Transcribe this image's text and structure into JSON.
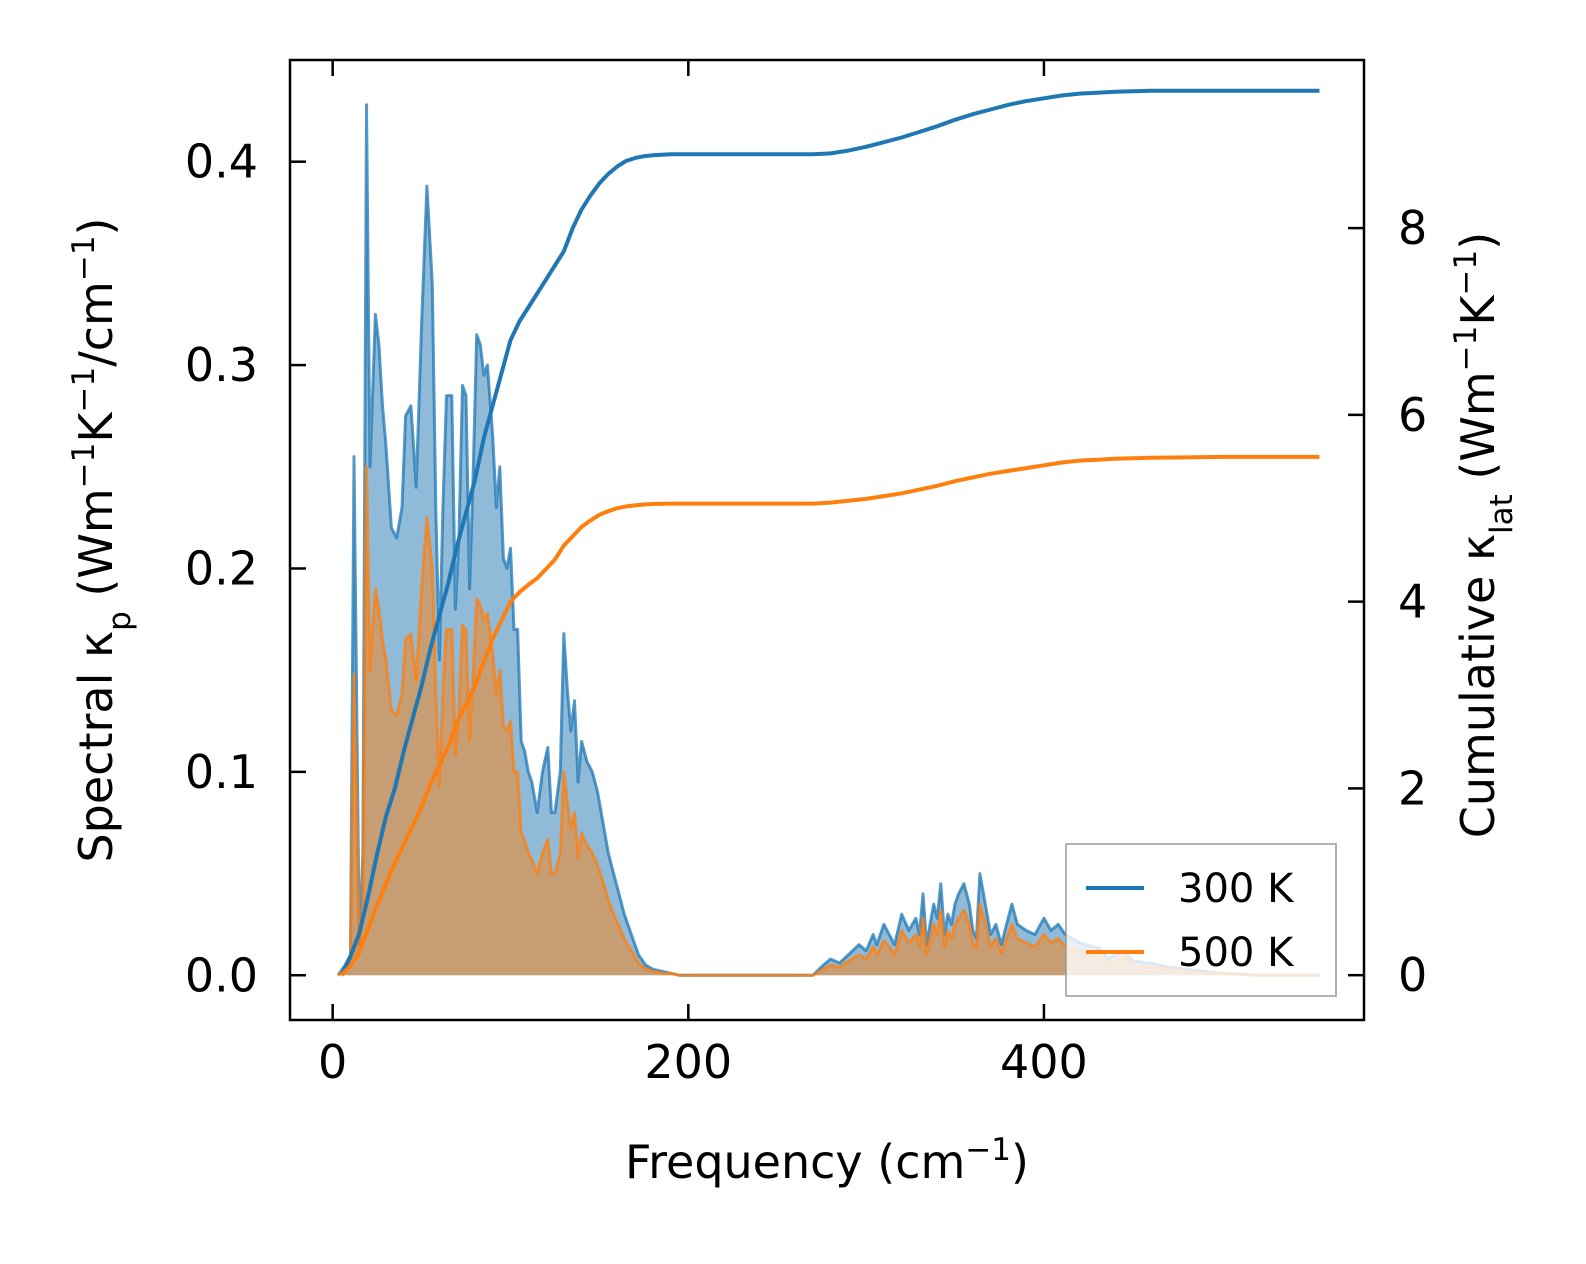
{
  "chart_data": {
    "type": "line",
    "title": "",
    "xlabel": {
      "base": "Frequency (cm",
      "sup": "−1",
      "tail": ")"
    },
    "ylabel_left": {
      "parts": [
        {
          "t": "Spectral κ"
        },
        {
          "t": "p",
          "sub": true
        },
        {
          "t": " (Wm"
        },
        {
          "t": "−1",
          "sup": true
        },
        {
          "t": "K"
        },
        {
          "t": "−1",
          "sup": true
        },
        {
          "t": "/cm"
        },
        {
          "t": "−1",
          "sup": true
        },
        {
          "t": ")"
        }
      ]
    },
    "ylabel_right": {
      "parts": [
        {
          "t": "Cumulative κ"
        },
        {
          "t": "lat",
          "sub": true
        },
        {
          "t": " (Wm"
        },
        {
          "t": "−1",
          "sup": true
        },
        {
          "t": "K"
        },
        {
          "t": "−1",
          "sup": true
        },
        {
          "t": ")"
        }
      ]
    },
    "xlim": [
      -24,
      580
    ],
    "ylim_left": [
      -0.022,
      0.45
    ],
    "ylim_right": [
      -0.48,
      9.8
    ],
    "xticks": [
      0,
      200,
      400
    ],
    "yticks_left": [
      0.0,
      0.1,
      0.2,
      0.3,
      0.4
    ],
    "yticks_left_labels": [
      "0.0",
      "0.1",
      "0.2",
      "0.3",
      "0.4"
    ],
    "yticks_right": [
      0,
      2,
      4,
      6,
      8
    ],
    "yticks_right_labels": [
      "0",
      "2",
      "4",
      "6",
      "8"
    ],
    "legend": {
      "position": "lower-right",
      "entries": [
        "300 K",
        "500 K"
      ]
    },
    "colors": {
      "300K": "#1f77b4",
      "500K": "#ff7f0e"
    },
    "series": [
      {
        "name": "300 K",
        "kind": "spectral",
        "axis": "left",
        "x": [
          3,
          7,
          10,
          12,
          15,
          17,
          19,
          21,
          24,
          26,
          28,
          30,
          33,
          36,
          39,
          41,
          44,
          47,
          50,
          53,
          56,
          58,
          60,
          62,
          64,
          67,
          69,
          71,
          73,
          75,
          77,
          79,
          81,
          83,
          85,
          87,
          90,
          92,
          94,
          96,
          98,
          100,
          102,
          104,
          106,
          108,
          110,
          112,
          115,
          118,
          121,
          123,
          125,
          128,
          130,
          132,
          134,
          136,
          138,
          140,
          143,
          146,
          149,
          152,
          155,
          158,
          161,
          164,
          168,
          172,
          176,
          180,
          185,
          190,
          195,
          200,
          210,
          230,
          250,
          270,
          276,
          280,
          285,
          290,
          296,
          300,
          304,
          306,
          310,
          313,
          316,
          320,
          324,
          328,
          330,
          332,
          334,
          336,
          338,
          340,
          342,
          344,
          346,
          348,
          350,
          352,
          355,
          358,
          360,
          362,
          364,
          367,
          370,
          373,
          376,
          379,
          382,
          385,
          390,
          395,
          400,
          404,
          408,
          412,
          416,
          420,
          424,
          428,
          432,
          436,
          440,
          445,
          450,
          460,
          470,
          480,
          490,
          500,
          520,
          540,
          555
        ],
        "y": [
          0.0,
          0.005,
          0.01,
          0.255,
          0.015,
          0.06,
          0.428,
          0.25,
          0.325,
          0.31,
          0.28,
          0.26,
          0.22,
          0.215,
          0.23,
          0.275,
          0.28,
          0.24,
          0.32,
          0.388,
          0.34,
          0.23,
          0.155,
          0.23,
          0.285,
          0.285,
          0.18,
          0.215,
          0.29,
          0.285,
          0.19,
          0.245,
          0.315,
          0.31,
          0.295,
          0.3,
          0.265,
          0.23,
          0.25,
          0.205,
          0.2,
          0.21,
          0.17,
          0.17,
          0.115,
          0.11,
          0.1,
          0.095,
          0.08,
          0.1,
          0.112,
          0.08,
          0.08,
          0.1,
          0.168,
          0.14,
          0.12,
          0.135,
          0.095,
          0.115,
          0.105,
          0.1,
          0.09,
          0.075,
          0.06,
          0.05,
          0.04,
          0.03,
          0.02,
          0.01,
          0.005,
          0.003,
          0.002,
          0.001,
          0.0,
          0.0,
          0.0,
          0.0,
          0.0,
          0.0,
          0.005,
          0.008,
          0.006,
          0.01,
          0.015,
          0.012,
          0.02,
          0.015,
          0.025,
          0.02,
          0.015,
          0.03,
          0.022,
          0.028,
          0.02,
          0.04,
          0.015,
          0.025,
          0.035,
          0.028,
          0.045,
          0.02,
          0.03,
          0.025,
          0.035,
          0.04,
          0.045,
          0.035,
          0.022,
          0.018,
          0.05,
          0.035,
          0.02,
          0.025,
          0.015,
          0.025,
          0.035,
          0.025,
          0.022,
          0.02,
          0.028,
          0.022,
          0.025,
          0.02,
          0.018,
          0.016,
          0.015,
          0.014,
          0.013,
          0.008,
          0.01,
          0.012,
          0.007,
          0.006,
          0.004,
          0.003,
          0.002,
          0.001,
          0.0,
          0.0,
          0.0
        ]
      },
      {
        "name": "500 K",
        "kind": "spectral",
        "axis": "left",
        "x": [
          3,
          7,
          10,
          12,
          15,
          17,
          19,
          21,
          24,
          26,
          28,
          30,
          33,
          36,
          39,
          41,
          44,
          47,
          50,
          53,
          56,
          58,
          60,
          62,
          64,
          67,
          69,
          71,
          73,
          75,
          77,
          79,
          81,
          83,
          85,
          87,
          90,
          92,
          94,
          96,
          98,
          100,
          102,
          104,
          106,
          108,
          110,
          112,
          115,
          118,
          121,
          123,
          125,
          128,
          130,
          132,
          134,
          136,
          138,
          140,
          143,
          146,
          149,
          152,
          155,
          158,
          161,
          164,
          168,
          172,
          176,
          180,
          185,
          190,
          195,
          200,
          210,
          230,
          250,
          270,
          276,
          280,
          285,
          290,
          296,
          300,
          304,
          306,
          310,
          313,
          316,
          320,
          324,
          328,
          330,
          332,
          334,
          336,
          338,
          340,
          342,
          344,
          346,
          348,
          350,
          352,
          355,
          358,
          360,
          362,
          364,
          367,
          370,
          373,
          376,
          379,
          382,
          385,
          390,
          395,
          400,
          404,
          408,
          412,
          416,
          420,
          424,
          428,
          432,
          436,
          440,
          445,
          450,
          460,
          470,
          480,
          490,
          500,
          520,
          540,
          555
        ],
        "y": [
          0.0,
          0.003,
          0.006,
          0.148,
          0.01,
          0.035,
          0.25,
          0.15,
          0.19,
          0.18,
          0.165,
          0.155,
          0.13,
          0.128,
          0.138,
          0.165,
          0.168,
          0.145,
          0.19,
          0.225,
          0.2,
          0.14,
          0.093,
          0.14,
          0.17,
          0.17,
          0.108,
          0.13,
          0.172,
          0.17,
          0.115,
          0.147,
          0.185,
          0.182,
          0.175,
          0.178,
          0.158,
          0.138,
          0.15,
          0.123,
          0.12,
          0.125,
          0.1,
          0.1,
          0.07,
          0.066,
          0.06,
          0.057,
          0.05,
          0.06,
          0.067,
          0.05,
          0.05,
          0.06,
          0.1,
          0.085,
          0.072,
          0.08,
          0.058,
          0.07,
          0.064,
          0.06,
          0.054,
          0.046,
          0.037,
          0.03,
          0.024,
          0.018,
          0.012,
          0.006,
          0.003,
          0.002,
          0.001,
          0.001,
          0.0,
          0.0,
          0.0,
          0.0,
          0.0,
          0.0,
          0.003,
          0.005,
          0.004,
          0.007,
          0.01,
          0.008,
          0.014,
          0.01,
          0.017,
          0.014,
          0.01,
          0.022,
          0.016,
          0.02,
          0.014,
          0.028,
          0.01,
          0.018,
          0.025,
          0.02,
          0.032,
          0.014,
          0.022,
          0.018,
          0.025,
          0.028,
          0.032,
          0.025,
          0.016,
          0.013,
          0.035,
          0.025,
          0.014,
          0.018,
          0.011,
          0.018,
          0.025,
          0.018,
          0.016,
          0.014,
          0.02,
          0.016,
          0.018,
          0.014,
          0.013,
          0.012,
          0.011,
          0.01,
          0.009,
          0.006,
          0.007,
          0.009,
          0.005,
          0.004,
          0.003,
          0.002,
          0.001,
          0.001,
          0.0,
          0.0,
          0.0
        ]
      },
      {
        "name": "300 K",
        "kind": "cumulative",
        "axis": "right",
        "x": [
          5,
          10,
          15,
          20,
          25,
          30,
          35,
          40,
          45,
          50,
          55,
          60,
          65,
          70,
          75,
          80,
          85,
          90,
          95,
          100,
          105,
          110,
          115,
          120,
          125,
          130,
          135,
          140,
          145,
          150,
          155,
          160,
          165,
          170,
          175,
          180,
          190,
          200,
          220,
          240,
          260,
          270,
          280,
          290,
          300,
          310,
          320,
          330,
          340,
          350,
          360,
          370,
          380,
          390,
          400,
          410,
          420,
          430,
          440,
          450,
          460,
          480,
          500,
          520,
          540,
          555
        ],
        "y": [
          0.0,
          0.2,
          0.45,
          0.85,
          1.3,
          1.7,
          2.0,
          2.4,
          2.75,
          3.1,
          3.5,
          3.85,
          4.2,
          4.6,
          4.95,
          5.3,
          5.75,
          6.1,
          6.45,
          6.8,
          7.0,
          7.15,
          7.3,
          7.45,
          7.6,
          7.75,
          8.0,
          8.2,
          8.35,
          8.48,
          8.58,
          8.66,
          8.72,
          8.75,
          8.77,
          8.78,
          8.79,
          8.79,
          8.79,
          8.79,
          8.79,
          8.79,
          8.8,
          8.83,
          8.87,
          8.92,
          8.97,
          9.03,
          9.09,
          9.16,
          9.22,
          9.27,
          9.32,
          9.36,
          9.39,
          9.42,
          9.44,
          9.45,
          9.46,
          9.465,
          9.47,
          9.47,
          9.47,
          9.47,
          9.47,
          9.47
        ]
      },
      {
        "name": "500 K",
        "kind": "cumulative",
        "axis": "right",
        "x": [
          5,
          10,
          15,
          20,
          25,
          30,
          35,
          40,
          45,
          50,
          55,
          60,
          65,
          70,
          75,
          80,
          85,
          90,
          95,
          100,
          105,
          110,
          115,
          120,
          125,
          130,
          135,
          140,
          145,
          150,
          155,
          160,
          165,
          170,
          175,
          180,
          190,
          200,
          220,
          240,
          260,
          270,
          280,
          290,
          300,
          310,
          320,
          330,
          340,
          350,
          360,
          370,
          380,
          390,
          400,
          410,
          420,
          430,
          440,
          450,
          460,
          480,
          500,
          520,
          540,
          555
        ],
        "y": [
          0.0,
          0.1,
          0.25,
          0.5,
          0.75,
          0.98,
          1.2,
          1.4,
          1.6,
          1.8,
          2.05,
          2.25,
          2.45,
          2.7,
          2.9,
          3.1,
          3.35,
          3.6,
          3.8,
          4.0,
          4.1,
          4.18,
          4.25,
          4.35,
          4.45,
          4.6,
          4.7,
          4.8,
          4.87,
          4.93,
          4.97,
          5.0,
          5.02,
          5.03,
          5.04,
          5.045,
          5.05,
          5.05,
          5.05,
          5.05,
          5.05,
          5.05,
          5.06,
          5.08,
          5.1,
          5.13,
          5.16,
          5.2,
          5.24,
          5.29,
          5.33,
          5.37,
          5.4,
          5.43,
          5.46,
          5.49,
          5.51,
          5.52,
          5.53,
          5.535,
          5.54,
          5.545,
          5.55,
          5.55,
          5.55,
          5.55
        ]
      }
    ]
  }
}
